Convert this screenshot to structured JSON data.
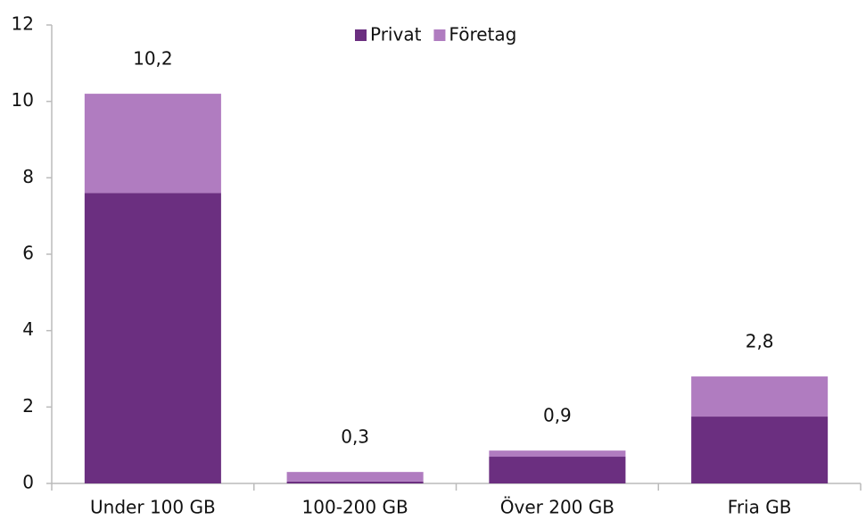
{
  "chart_data": {
    "type": "stacked_bar",
    "categories": [
      "Under 100 GB",
      "100-200 GB",
      "Över 200 GB",
      "Fria GB"
    ],
    "series": [
      {
        "name": "Privat",
        "color": "#6b2f80",
        "values": [
          7.6,
          0.05,
          0.7,
          1.75
        ]
      },
      {
        "name": "Företag",
        "color": "#b07cc0",
        "values": [
          2.6,
          0.25,
          0.16,
          1.05
        ]
      }
    ],
    "totals": [
      10.2,
      0.3,
      0.86,
      2.8
    ],
    "total_labels": [
      "10,2",
      "0,3",
      "0,9",
      "2,8"
    ],
    "ylim": [
      0,
      12
    ],
    "yticks": [
      0,
      2,
      4,
      6,
      8,
      10,
      12
    ],
    "grid": false,
    "legend": "top"
  }
}
